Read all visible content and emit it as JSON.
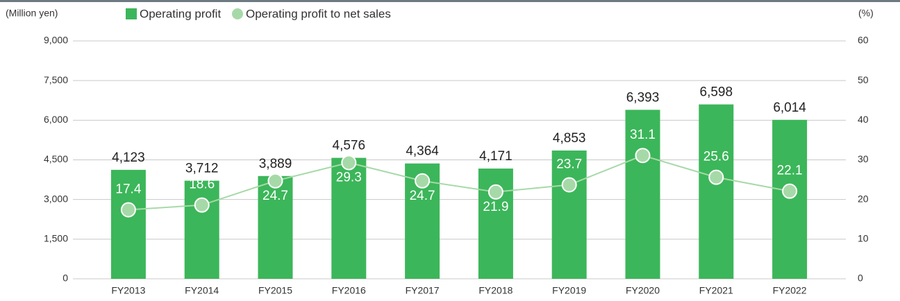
{
  "chart_data": {
    "type": "bar-line",
    "y_label": "(Million yen)",
    "y2_label": "(%)",
    "categories": [
      "FY2013",
      "FY2014",
      "FY2015",
      "FY2016",
      "FY2017",
      "FY2018",
      "FY2019",
      "FY2020",
      "FY2021",
      "FY2022"
    ],
    "series": [
      {
        "name": "Operating profit",
        "color": "#3cb65a",
        "type": "bar",
        "values": [
          4123,
          3712,
          3889,
          4576,
          4364,
          4171,
          4853,
          6393,
          6598,
          6014
        ],
        "value_labels": [
          "4,123",
          "3,712",
          "3,889",
          "4,576",
          "4,364",
          "4,171",
          "4,853",
          "6,393",
          "6,598",
          "6,014"
        ]
      },
      {
        "name": "Operating profit to net sales",
        "color": "#a6d9a8",
        "type": "line",
        "axis": "y2",
        "values": [
          17.4,
          18.6,
          24.7,
          29.3,
          24.7,
          21.9,
          23.7,
          31.1,
          25.6,
          22.1
        ]
      }
    ],
    "ylim": [
      0,
      9000
    ],
    "yticks": [
      0,
      {
        "value": 1500,
        "label": "1,500"
      },
      {
        "value": 3000,
        "label": "3,000"
      },
      {
        "value": 4500,
        "label": "4,500"
      },
      {
        "value": 6000,
        "label": "6,000"
      },
      {
        "value": 7500,
        "label": "7,500"
      },
      {
        "value": 9000,
        "label": "9,000"
      }
    ],
    "y2lim": [
      0,
      60
    ],
    "y2ticks": [
      0,
      10,
      20,
      30,
      40,
      50,
      60
    ],
    "grid": true
  }
}
